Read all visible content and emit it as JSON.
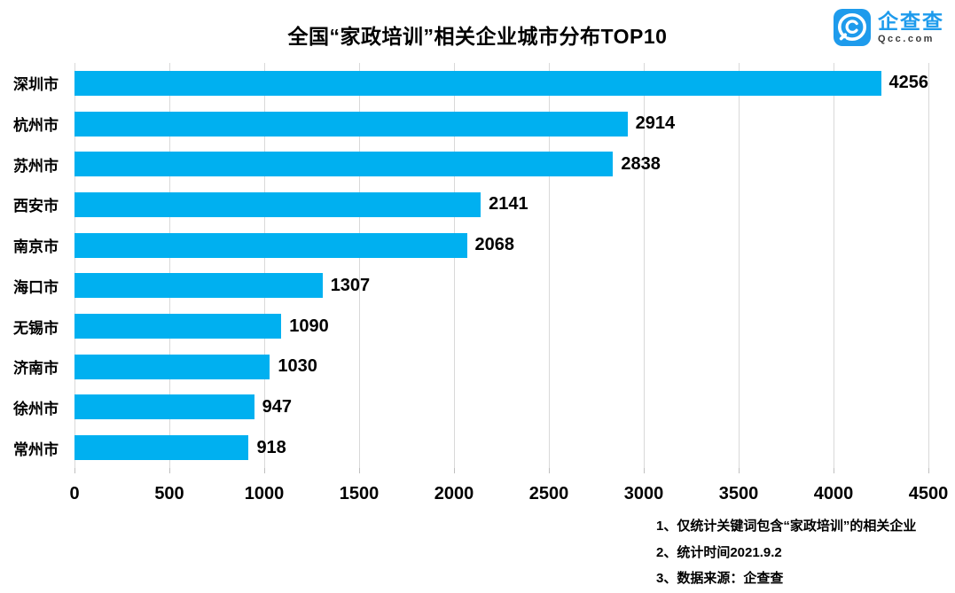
{
  "title": "全国“家政培训”相关企业城市分布TOP10",
  "logo": {
    "name": "企查查",
    "domain": "Qcc.com",
    "brand_color": "#1e9bec"
  },
  "chart_data": {
    "type": "bar",
    "orientation": "horizontal",
    "title": "全国“家政培训”相关企业城市分布TOP10",
    "categories": [
      "深圳市",
      "杭州市",
      "苏州市",
      "西安市",
      "南京市",
      "海口市",
      "无锡市",
      "济南市",
      "徐州市",
      "常州市"
    ],
    "values": [
      4256,
      2914,
      2838,
      2141,
      2068,
      1307,
      1090,
      1030,
      947,
      918
    ],
    "xlabel": "",
    "ylabel": "",
    "xlim": [
      0,
      4500
    ],
    "x_ticks": [
      0,
      500,
      1000,
      1500,
      2000,
      2500,
      3000,
      3500,
      4000,
      4500
    ],
    "grid": "vertical",
    "legend": "none",
    "bar_color": "#00b0f0",
    "gridline_color": "#d9d9d9"
  },
  "footnotes": [
    "1、仅统计关键词包含“家政培训”的相关企业",
    "2、统计时间2021.9.2",
    "3、数据来源：企查查"
  ]
}
